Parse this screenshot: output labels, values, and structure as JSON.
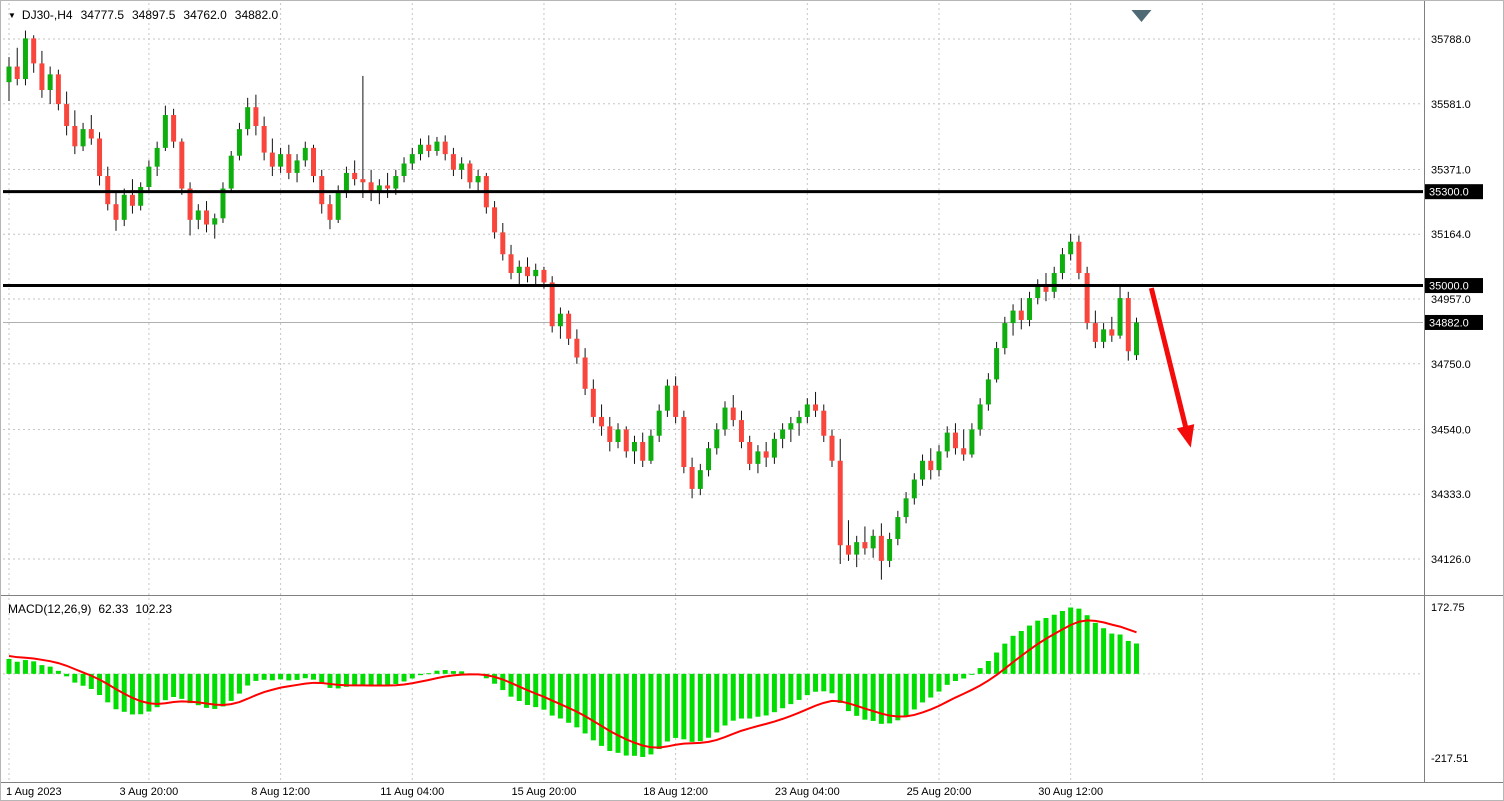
{
  "header": {
    "dropdown_icon": "▼",
    "symbol_period": "DJ30-,H4",
    "open": "34777.5",
    "high": "34897.5",
    "low": "34762.0",
    "close": "34882.0"
  },
  "indicator": {
    "name": "MACD(12,26,9)",
    "value_main": "62.33",
    "value_signal": "102.23"
  },
  "colors": {
    "bull": "#0fae0f",
    "bear": "#f9463c",
    "wick": "#111111",
    "grid": "#c6c6c6",
    "macd_hist": "#00dd00",
    "macd_signal": "#ff0000",
    "current_line": "#b0b0b0",
    "level": "#000000",
    "arrow": "#f40b0b",
    "axis_text": "#000000",
    "badge_bg": "#000000",
    "badge_text": "#ffffff",
    "separator": "#808080",
    "shift_marker": "#4f6a74"
  },
  "chart_data": {
    "type": "candlestick",
    "symbol": "DJ30-",
    "timeframe": "H4",
    "price_axis_ticks": [
      "35788.0",
      "35581.0",
      "35371.0",
      "35164.0",
      "34957.0",
      "34750.0",
      "34540.0",
      "34333.0",
      "34126.0"
    ],
    "price_levels": [
      {
        "price": 35300.0,
        "label": "35300.0",
        "width": 3
      },
      {
        "price": 35000.0,
        "label": "35000.0",
        "width": 3
      }
    ],
    "current_price": {
      "value": 34882.0,
      "label": "34882.0"
    },
    "time_labels": [
      {
        "text": "1 Aug 2023",
        "bar": 0
      },
      {
        "text": "3 Aug 20:00",
        "bar": 17
      },
      {
        "text": "8 Aug 12:00",
        "bar": 33
      },
      {
        "text": "11 Aug 04:00",
        "bar": 49
      },
      {
        "text": "15 Aug 20:00",
        "bar": 65
      },
      {
        "text": "18 Aug 12:00",
        "bar": 81
      },
      {
        "text": "23 Aug 04:00",
        "bar": 97
      },
      {
        "text": "25 Aug 20:00",
        "bar": 113
      },
      {
        "text": "30 Aug 12:00",
        "bar": 129
      }
    ],
    "extra_grid_bars": [
      145,
      161
    ],
    "candles": [
      [
        35650,
        35730,
        35590,
        35700
      ],
      [
        35700,
        35760,
        35640,
        35660
      ],
      [
        35660,
        35815,
        35640,
        35790
      ],
      [
        35790,
        35800,
        35680,
        35710
      ],
      [
        35710,
        35750,
        35600,
        35625
      ],
      [
        35625,
        35700,
        35580,
        35675
      ],
      [
        35675,
        35690,
        35560,
        35580
      ],
      [
        35580,
        35620,
        35480,
        35510
      ],
      [
        35510,
        35560,
        35420,
        35445
      ],
      [
        35445,
        35520,
        35430,
        35500
      ],
      [
        35500,
        35545,
        35450,
        35470
      ],
      [
        35470,
        35490,
        35320,
        35350
      ],
      [
        35350,
        35380,
        35240,
        35260
      ],
      [
        35260,
        35300,
        35175,
        35210
      ],
      [
        35210,
        35310,
        35190,
        35290
      ],
      [
        35290,
        35340,
        35230,
        35255
      ],
      [
        35255,
        35330,
        35240,
        35315
      ],
      [
        35315,
        35400,
        35300,
        35380
      ],
      [
        35380,
        35460,
        35350,
        35440
      ],
      [
        35440,
        35575,
        35430,
        35545
      ],
      [
        35545,
        35565,
        35440,
        35460
      ],
      [
        35460,
        35470,
        35290,
        35310
      ],
      [
        35310,
        35330,
        35160,
        35210
      ],
      [
        35210,
        35260,
        35180,
        35240
      ],
      [
        35240,
        35270,
        35170,
        35195
      ],
      [
        35195,
        35230,
        35150,
        35215
      ],
      [
        35215,
        35330,
        35200,
        35310
      ],
      [
        35310,
        35430,
        35300,
        35415
      ],
      [
        35415,
        35520,
        35400,
        35500
      ],
      [
        35500,
        35600,
        35480,
        35570
      ],
      [
        35570,
        35610,
        35480,
        35510
      ],
      [
        35510,
        35540,
        35400,
        35425
      ],
      [
        35425,
        35470,
        35350,
        35380
      ],
      [
        35380,
        35440,
        35360,
        35420
      ],
      [
        35420,
        35450,
        35340,
        35360
      ],
      [
        35360,
        35420,
        35330,
        35400
      ],
      [
        35400,
        35460,
        35380,
        35440
      ],
      [
        35440,
        35450,
        35330,
        35350
      ],
      [
        35350,
        35370,
        35230,
        35260
      ],
      [
        35260,
        35290,
        35180,
        35210
      ],
      [
        35210,
        35320,
        35200,
        35300
      ],
      [
        35300,
        35380,
        35280,
        35360
      ],
      [
        35360,
        35400,
        35320,
        35340
      ],
      [
        35340,
        35670,
        35280,
        35330
      ],
      [
        35330,
        35370,
        35270,
        35300
      ],
      [
        35300,
        35340,
        35260,
        35320
      ],
      [
        35320,
        35360,
        35280,
        35310
      ],
      [
        35310,
        35370,
        35290,
        35350
      ],
      [
        35350,
        35410,
        35330,
        35390
      ],
      [
        35390,
        35440,
        35370,
        35420
      ],
      [
        35420,
        35470,
        35400,
        35450
      ],
      [
        35450,
        35480,
        35410,
        35430
      ],
      [
        35430,
        35475,
        35415,
        35460
      ],
      [
        35460,
        35480,
        35400,
        35420
      ],
      [
        35420,
        35440,
        35350,
        35370
      ],
      [
        35370,
        35410,
        35340,
        35390
      ],
      [
        35390,
        35400,
        35310,
        35330
      ],
      [
        35330,
        35370,
        35300,
        35350
      ],
      [
        35350,
        35360,
        35230,
        35250
      ],
      [
        35250,
        35270,
        35150,
        35170
      ],
      [
        35170,
        35200,
        35080,
        35100
      ],
      [
        35100,
        35130,
        35020,
        35040
      ],
      [
        35040,
        35080,
        35000,
        35060
      ],
      [
        35060,
        35090,
        35010,
        35030
      ],
      [
        35030,
        35070,
        35000,
        35050
      ],
      [
        35050,
        35060,
        34990,
        35010
      ],
      [
        35010,
        35030,
        34850,
        34870
      ],
      [
        34870,
        34930,
        34830,
        34910
      ],
      [
        34910,
        34920,
        34810,
        34830
      ],
      [
        34830,
        34860,
        34750,
        34770
      ],
      [
        34770,
        34800,
        34650,
        34670
      ],
      [
        34670,
        34700,
        34560,
        34580
      ],
      [
        34580,
        34620,
        34520,
        34550
      ],
      [
        34550,
        34580,
        34470,
        34500
      ],
      [
        34500,
        34560,
        34480,
        34540
      ],
      [
        34540,
        34550,
        34450,
        34470
      ],
      [
        34470,
        34520,
        34430,
        34500
      ],
      [
        34500,
        34530,
        34420,
        34440
      ],
      [
        34440,
        34540,
        34430,
        34520
      ],
      [
        34520,
        34620,
        34500,
        34600
      ],
      [
        34600,
        34700,
        34580,
        34680
      ],
      [
        34680,
        34710,
        34560,
        34580
      ],
      [
        34580,
        34600,
        34400,
        34420
      ],
      [
        34420,
        34450,
        34320,
        34350
      ],
      [
        34350,
        34430,
        34330,
        34410
      ],
      [
        34410,
        34500,
        34390,
        34480
      ],
      [
        34480,
        34560,
        34460,
        34540
      ],
      [
        34540,
        34630,
        34520,
        34610
      ],
      [
        34610,
        34650,
        34550,
        34570
      ],
      [
        34570,
        34600,
        34480,
        34500
      ],
      [
        34500,
        34520,
        34410,
        34430
      ],
      [
        34430,
        34490,
        34400,
        34470
      ],
      [
        34470,
        34500,
        34420,
        34450
      ],
      [
        34450,
        34530,
        34430,
        34510
      ],
      [
        34510,
        34560,
        34480,
        34540
      ],
      [
        34540,
        34580,
        34500,
        34560
      ],
      [
        34560,
        34600,
        34520,
        34580
      ],
      [
        34580,
        34640,
        34560,
        34620
      ],
      [
        34620,
        34660,
        34580,
        34600
      ],
      [
        34600,
        34620,
        34500,
        34520
      ],
      [
        34520,
        34540,
        34420,
        34440
      ],
      [
        34440,
        34510,
        34110,
        34170
      ],
      [
        34170,
        34250,
        34120,
        34140
      ],
      [
        34140,
        34200,
        34100,
        34180
      ],
      [
        34180,
        34230,
        34140,
        34160
      ],
      [
        34160,
        34220,
        34130,
        34200
      ],
      [
        34200,
        34240,
        34060,
        34120
      ],
      [
        34120,
        34210,
        34100,
        34190
      ],
      [
        34190,
        34280,
        34170,
        34260
      ],
      [
        34260,
        34340,
        34240,
        34320
      ],
      [
        34320,
        34400,
        34300,
        34380
      ],
      [
        34380,
        34460,
        34360,
        34440
      ],
      [
        34440,
        34480,
        34380,
        34410
      ],
      [
        34410,
        34490,
        34390,
        34470
      ],
      [
        34470,
        34550,
        34450,
        34530
      ],
      [
        34530,
        34560,
        34460,
        34480
      ],
      [
        34480,
        34540,
        34440,
        34460
      ],
      [
        34460,
        34560,
        34450,
        34540
      ],
      [
        34540,
        34640,
        34520,
        34620
      ],
      [
        34620,
        34720,
        34600,
        34700
      ],
      [
        34700,
        34820,
        34690,
        34800
      ],
      [
        34800,
        34900,
        34780,
        34880
      ],
      [
        34880,
        34940,
        34840,
        34920
      ],
      [
        34920,
        34960,
        34860,
        34890
      ],
      [
        34890,
        34980,
        34870,
        34960
      ],
      [
        34960,
        35020,
        34940,
        35000
      ],
      [
        35000,
        35040,
        34950,
        34980
      ],
      [
        34980,
        35060,
        34960,
        35040
      ],
      [
        35040,
        35120,
        35020,
        35100
      ],
      [
        35100,
        35165,
        35080,
        35140
      ],
      [
        35140,
        35160,
        35020,
        35040
      ],
      [
        35040,
        35060,
        34860,
        34880
      ],
      [
        34880,
        34920,
        34800,
        34820
      ],
      [
        34820,
        34880,
        34800,
        34860
      ],
      [
        34860,
        34900,
        34820,
        34840
      ],
      [
        34840,
        35005,
        34830,
        34960
      ],
      [
        34960,
        34980,
        34760,
        34790
      ],
      [
        34777.5,
        34897.5,
        34762.0,
        34882.0
      ]
    ],
    "macd": {
      "fast": 12,
      "slow": 26,
      "signal": 9,
      "ylim": [
        -217.51,
        172.75
      ],
      "axis_labels": [
        {
          "text": "172.75",
          "value": 172.75
        },
        {
          "text": "-217.51",
          "value": -217.51
        }
      ],
      "seed_fast_offset": 17,
      "seed_slow_offset": -26,
      "seed_signal": 46,
      "display_main": 62.33,
      "display_signal": 102.23
    },
    "arrow": {
      "from_bar": 138.8,
      "from_price": 34992,
      "to_bar": 143.3,
      "to_price": 34513,
      "width": 5
    },
    "shift_marker_bar": 137.6
  }
}
